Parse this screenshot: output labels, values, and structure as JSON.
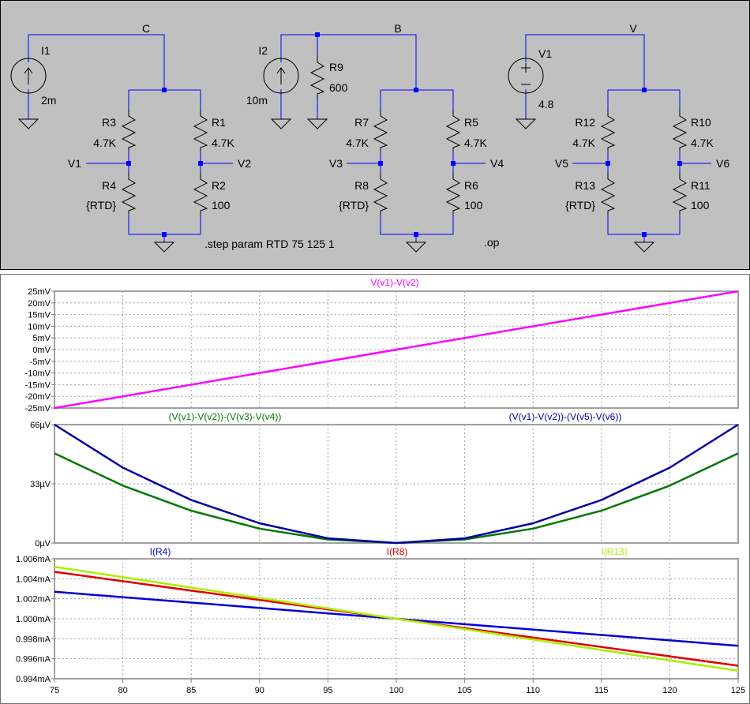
{
  "schematic": {
    "nets": {
      "c": "C",
      "b": "B",
      "v": "V"
    },
    "circuit1": {
      "source": {
        "name": "I1",
        "value": "2m"
      },
      "r3": {
        "name": "R3",
        "value": "4.7K"
      },
      "r4": {
        "name": "R4",
        "value": "{RTD}"
      },
      "r1": {
        "name": "R1",
        "value": "4.7K"
      },
      "r2": {
        "name": "R2",
        "value": "100"
      },
      "left_node": "V1",
      "right_node": "V2"
    },
    "circuit2": {
      "source": {
        "name": "I2",
        "value": "10m"
      },
      "r9": {
        "name": "R9",
        "value": "600"
      },
      "r7": {
        "name": "R7",
        "value": "4.7K"
      },
      "r8": {
        "name": "R8",
        "value": "{RTD}"
      },
      "r5": {
        "name": "R5",
        "value": "4.7K"
      },
      "r6": {
        "name": "R6",
        "value": "100"
      },
      "left_node": "V3",
      "right_node": "V4"
    },
    "circuit3": {
      "source": {
        "name": "V1",
        "value": "4.8"
      },
      "r12": {
        "name": "R12",
        "value": "4.7K"
      },
      "r13": {
        "name": "R13",
        "value": "{RTD}"
      },
      "r10": {
        "name": "R10",
        "value": "4.7K"
      },
      "r11": {
        "name": "R11",
        "value": "100"
      },
      "left_node": "V5",
      "right_node": "V6"
    },
    "directives": {
      "step": ".step param RTD 75 125 1",
      "op": ".op"
    }
  },
  "colors": {
    "magenta": "#ff00ff",
    "green": "#007800",
    "navy": "#0000a0",
    "blue": "#0000d8",
    "red": "#e00000",
    "lime": "#a8f000",
    "grid": "#a0a0a0"
  },
  "chart_data": [
    {
      "type": "line",
      "title": "V(v1)-V(v2)",
      "x": [
        75,
        125
      ],
      "series": [
        {
          "name": "V(v1)-V(v2)",
          "x": [
            75,
            125
          ],
          "y": [
            -25,
            25
          ]
        }
      ],
      "yunit": "mV",
      "ylim": [
        -25,
        25
      ],
      "yticks": [
        "25mV",
        "20mV",
        "15mV",
        "10mV",
        "5mV",
        "0mV",
        "-5mV",
        "-10mV",
        "-15mV",
        "-20mV",
        "-25mV"
      ],
      "grid": true
    },
    {
      "type": "line",
      "x": [
        75,
        80,
        85,
        90,
        95,
        100,
        105,
        110,
        115,
        120,
        125
      ],
      "series": [
        {
          "name": "(V(v1)-V(v2))-(V(v3)-V(v4))",
          "y": [
            50,
            32,
            18,
            8,
            2,
            0,
            2,
            8,
            18,
            32,
            50
          ]
        },
        {
          "name": "(V(v1)-V(v2))-(V(v5)-V(v6))",
          "y": [
            66,
            42,
            24,
            11,
            2.6,
            0,
            2.6,
            11,
            24,
            42,
            66
          ]
        }
      ],
      "yunit": "µV",
      "ylim": [
        0,
        66
      ],
      "yticks": [
        "66µV",
        "33µV",
        "0µV"
      ],
      "grid": true
    },
    {
      "type": "line",
      "x": [
        75,
        125
      ],
      "series": [
        {
          "name": "I(R4)",
          "y": [
            1.0027,
            0.9973
          ]
        },
        {
          "name": "I(R8)",
          "y": [
            1.0047,
            0.9953
          ]
        },
        {
          "name": "I(R13)",
          "y": [
            1.0052,
            0.9948
          ]
        }
      ],
      "yunit": "mA",
      "ylim": [
        0.994,
        1.006
      ],
      "yticks": [
        "1.006mA",
        "1.004mA",
        "1.002mA",
        "1.000mA",
        "0.998mA",
        "0.996mA",
        "0.994mA"
      ],
      "xticks": [
        "75",
        "80",
        "85",
        "90",
        "95",
        "100",
        "105",
        "110",
        "115",
        "120",
        "125"
      ],
      "grid": true
    }
  ]
}
